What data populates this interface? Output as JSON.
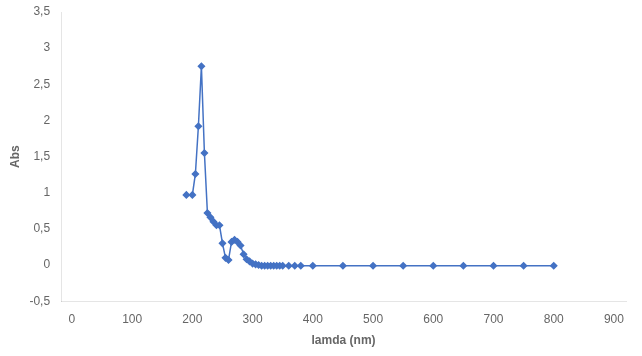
{
  "chart_data": {
    "type": "line",
    "xlabel": "lamda (nm)",
    "ylabel": "Abs",
    "x": [
      190,
      200,
      205,
      210,
      215,
      220,
      225,
      230,
      235,
      240,
      245,
      250,
      255,
      260,
      265,
      270,
      275,
      280,
      285,
      290,
      295,
      300,
      305,
      310,
      315,
      320,
      325,
      330,
      335,
      340,
      345,
      350,
      360,
      370,
      380,
      400,
      450,
      500,
      550,
      600,
      650,
      700,
      750,
      800
    ],
    "values": [
      0.97,
      0.97,
      1.26,
      1.92,
      2.75,
      1.55,
      0.72,
      0.66,
      0.6,
      0.55,
      0.55,
      0.3,
      0.1,
      0.07,
      0.32,
      0.35,
      0.32,
      0.27,
      0.15,
      0.08,
      0.05,
      0.02,
      0.01,
      0.0,
      -0.01,
      -0.01,
      -0.01,
      -0.01,
      -0.01,
      -0.01,
      -0.01,
      -0.01,
      -0.01,
      -0.01,
      -0.01,
      -0.01,
      -0.01,
      -0.01,
      -0.01,
      -0.01,
      -0.01,
      -0.01,
      -0.01,
      -0.01
    ],
    "color": "#4472C4",
    "marker": "diamond",
    "xlim": [
      -18,
      920
    ],
    "ylim": [
      -0.5,
      3.5
    ],
    "xticks": [
      0,
      100,
      200,
      300,
      400,
      500,
      600,
      700,
      800,
      900
    ],
    "yticks": [
      {
        "value": -0.5,
        "label": "-0,5"
      },
      0,
      {
        "value": 0.5,
        "label": "0,5"
      },
      1,
      {
        "value": 1.5,
        "label": "1,5"
      },
      2,
      {
        "value": 2.5,
        "label": "2,5"
      },
      3,
      {
        "value": 3.5,
        "label": "3,5"
      }
    ],
    "grid": false
  }
}
